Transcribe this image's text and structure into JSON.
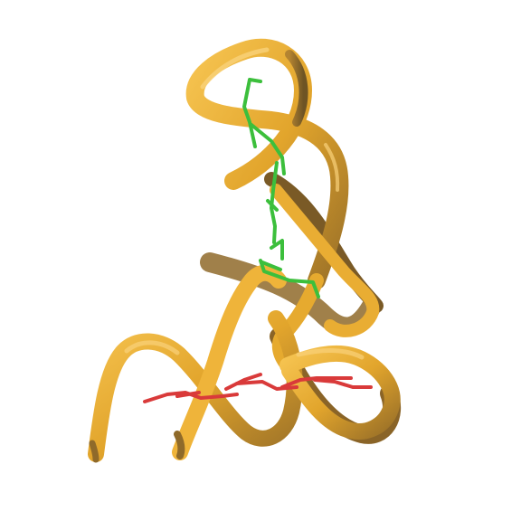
{
  "scene": {
    "background_color": "#ffffff",
    "subject": "protein-ribbon-cartoon",
    "colors": {
      "ribbon_light": "#f2b93a",
      "ribbon_mid": "#e2a52c",
      "ribbon_shadow": "#8f6a2a",
      "ribbon_edge": "#6e5424",
      "sticks_green": "#3cbf3c",
      "sticks_red": "#d93a3a"
    }
  }
}
